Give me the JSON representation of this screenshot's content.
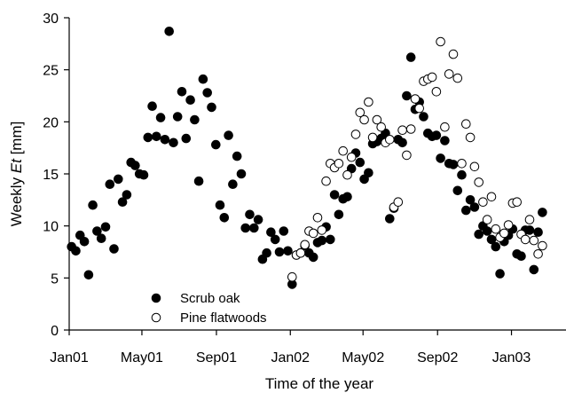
{
  "chart_data": {
    "type": "scatter",
    "xlabel": "Time of the year",
    "ylabel_prefix": "Weekly ",
    "ylabel_italic": "Et",
    "ylabel_suffix": " [mm]",
    "ylim": [
      0,
      30
    ],
    "yticks": [
      0,
      5,
      10,
      15,
      20,
      25,
      30
    ],
    "xlim": [
      "2001-01-01",
      "2003-04-01"
    ],
    "xticks": [
      {
        "date": "2001-01-01",
        "label": "Jan01"
      },
      {
        "date": "2001-05-01",
        "label": "May01"
      },
      {
        "date": "2001-09-01",
        "label": "Sep01"
      },
      {
        "date": "2002-01-01",
        "label": "Jan02"
      },
      {
        "date": "2002-05-01",
        "label": "May02"
      },
      {
        "date": "2002-09-01",
        "label": "Sep02"
      },
      {
        "date": "2003-01-01",
        "label": "Jan03"
      }
    ],
    "legend_position": "bottom-left",
    "series": [
      {
        "name": "Scrub oak",
        "marker": "filled-circle",
        "color": "#000000",
        "points": [
          [
            "2001-01-05",
            8.0
          ],
          [
            "2001-01-12",
            7.6
          ],
          [
            "2001-01-19",
            9.1
          ],
          [
            "2001-01-26",
            8.5
          ],
          [
            "2001-02-02",
            5.3
          ],
          [
            "2001-02-09",
            12.0
          ],
          [
            "2001-02-16",
            9.5
          ],
          [
            "2001-02-23",
            8.8
          ],
          [
            "2001-03-02",
            9.9
          ],
          [
            "2001-03-09",
            14.0
          ],
          [
            "2001-03-16",
            7.8
          ],
          [
            "2001-03-23",
            14.5
          ],
          [
            "2001-03-30",
            12.3
          ],
          [
            "2001-04-06",
            13.0
          ],
          [
            "2001-04-13",
            16.1
          ],
          [
            "2001-04-20",
            15.8
          ],
          [
            "2001-04-27",
            15.0
          ],
          [
            "2001-05-04",
            14.9
          ],
          [
            "2001-05-11",
            18.5
          ],
          [
            "2001-05-18",
            21.5
          ],
          [
            "2001-05-25",
            18.6
          ],
          [
            "2001-06-01",
            20.4
          ],
          [
            "2001-06-08",
            18.3
          ],
          [
            "2001-06-15",
            28.7
          ],
          [
            "2001-06-22",
            18.0
          ],
          [
            "2001-06-29",
            20.5
          ],
          [
            "2001-07-06",
            22.9
          ],
          [
            "2001-07-13",
            18.4
          ],
          [
            "2001-07-20",
            22.1
          ],
          [
            "2001-07-27",
            20.2
          ],
          [
            "2001-08-03",
            14.3
          ],
          [
            "2001-08-10",
            24.1
          ],
          [
            "2001-08-17",
            22.8
          ],
          [
            "2001-08-24",
            21.4
          ],
          [
            "2001-08-31",
            17.8
          ],
          [
            "2001-09-07",
            12.0
          ],
          [
            "2001-09-14",
            10.8
          ],
          [
            "2001-09-21",
            18.7
          ],
          [
            "2001-09-28",
            14.0
          ],
          [
            "2001-10-05",
            16.7
          ],
          [
            "2001-10-12",
            15.0
          ],
          [
            "2001-10-19",
            9.8
          ],
          [
            "2001-10-26",
            11.1
          ],
          [
            "2001-11-02",
            9.8
          ],
          [
            "2001-11-09",
            10.6
          ],
          [
            "2001-11-16",
            6.8
          ],
          [
            "2001-11-23",
            7.4
          ],
          [
            "2001-11-30",
            9.4
          ],
          [
            "2001-12-07",
            8.7
          ],
          [
            "2001-12-14",
            7.5
          ],
          [
            "2001-12-21",
            9.5
          ],
          [
            "2001-12-28",
            7.6
          ],
          [
            "2002-01-04",
            4.4
          ],
          [
            "2002-01-11",
            7.2
          ],
          [
            "2002-01-18",
            7.4
          ],
          [
            "2002-01-25",
            8.1
          ],
          [
            "2002-02-01",
            7.4
          ],
          [
            "2002-02-08",
            7.0
          ],
          [
            "2002-02-15",
            8.4
          ],
          [
            "2002-02-22",
            8.6
          ],
          [
            "2002-03-01",
            9.9
          ],
          [
            "2002-03-08",
            8.7
          ],
          [
            "2002-03-15",
            13.0
          ],
          [
            "2002-03-22",
            11.1
          ],
          [
            "2002-03-29",
            12.6
          ],
          [
            "2002-04-05",
            12.8
          ],
          [
            "2002-04-12",
            15.5
          ],
          [
            "2002-04-19",
            17.0
          ],
          [
            "2002-04-26",
            16.1
          ],
          [
            "2002-05-03",
            14.5
          ],
          [
            "2002-05-10",
            15.1
          ],
          [
            "2002-05-17",
            17.9
          ],
          [
            "2002-05-24",
            18.1
          ],
          [
            "2002-05-31",
            18.4
          ],
          [
            "2002-06-07",
            18.9
          ],
          [
            "2002-06-14",
            10.7
          ],
          [
            "2002-06-21",
            11.7
          ],
          [
            "2002-06-28",
            18.3
          ],
          [
            "2002-07-05",
            18.0
          ],
          [
            "2002-07-12",
            22.5
          ],
          [
            "2002-07-19",
            26.2
          ],
          [
            "2002-07-26",
            21.2
          ],
          [
            "2002-08-02",
            21.9
          ],
          [
            "2002-08-09",
            20.5
          ],
          [
            "2002-08-16",
            18.9
          ],
          [
            "2002-08-23",
            18.6
          ],
          [
            "2002-08-30",
            18.7
          ],
          [
            "2002-09-06",
            16.5
          ],
          [
            "2002-09-13",
            18.2
          ],
          [
            "2002-09-20",
            16.0
          ],
          [
            "2002-09-27",
            15.9
          ],
          [
            "2002-10-04",
            13.4
          ],
          [
            "2002-10-11",
            14.9
          ],
          [
            "2002-10-18",
            11.5
          ],
          [
            "2002-10-25",
            12.5
          ],
          [
            "2002-11-01",
            11.8
          ],
          [
            "2002-11-08",
            9.2
          ],
          [
            "2002-11-15",
            10.0
          ],
          [
            "2002-11-22",
            9.5
          ],
          [
            "2002-11-29",
            8.7
          ],
          [
            "2002-12-06",
            8.0
          ],
          [
            "2002-12-13",
            5.4
          ],
          [
            "2002-12-20",
            8.5
          ],
          [
            "2002-12-27",
            9.1
          ],
          [
            "2003-01-03",
            9.7
          ],
          [
            "2003-01-10",
            7.3
          ],
          [
            "2003-01-17",
            7.1
          ],
          [
            "2003-01-24",
            9.6
          ],
          [
            "2003-01-31",
            9.6
          ],
          [
            "2003-02-07",
            5.8
          ],
          [
            "2003-02-14",
            9.4
          ],
          [
            "2003-02-21",
            11.3
          ]
        ]
      },
      {
        "name": "Pine flatwoods",
        "marker": "open-circle",
        "color": "#000000",
        "points": [
          [
            "2002-01-04",
            5.1
          ],
          [
            "2002-01-11",
            7.2
          ],
          [
            "2002-01-18",
            7.4
          ],
          [
            "2002-01-25",
            8.2
          ],
          [
            "2002-02-01",
            9.5
          ],
          [
            "2002-02-08",
            9.3
          ],
          [
            "2002-02-15",
            10.8
          ],
          [
            "2002-02-22",
            9.6
          ],
          [
            "2002-03-01",
            14.3
          ],
          [
            "2002-03-08",
            16.0
          ],
          [
            "2002-03-15",
            15.6
          ],
          [
            "2002-03-22",
            16.0
          ],
          [
            "2002-03-29",
            17.2
          ],
          [
            "2002-04-05",
            14.9
          ],
          [
            "2002-04-12",
            16.6
          ],
          [
            "2002-04-19",
            18.8
          ],
          [
            "2002-04-26",
            20.9
          ],
          [
            "2002-05-03",
            20.2
          ],
          [
            "2002-05-10",
            21.9
          ],
          [
            "2002-05-17",
            18.5
          ],
          [
            "2002-05-24",
            20.2
          ],
          [
            "2002-05-31",
            19.5
          ],
          [
            "2002-06-07",
            18.0
          ],
          [
            "2002-06-14",
            18.3
          ],
          [
            "2002-06-21",
            11.8
          ],
          [
            "2002-06-28",
            12.3
          ],
          [
            "2002-07-05",
            19.2
          ],
          [
            "2002-07-12",
            16.8
          ],
          [
            "2002-07-19",
            19.3
          ],
          [
            "2002-07-26",
            22.2
          ],
          [
            "2002-08-02",
            21.3
          ],
          [
            "2002-08-09",
            23.9
          ],
          [
            "2002-08-16",
            24.1
          ],
          [
            "2002-08-23",
            24.3
          ],
          [
            "2002-08-30",
            22.9
          ],
          [
            "2002-09-06",
            27.7
          ],
          [
            "2002-09-13",
            19.5
          ],
          [
            "2002-09-20",
            24.6
          ],
          [
            "2002-09-27",
            26.5
          ],
          [
            "2002-10-04",
            24.2
          ],
          [
            "2002-10-11",
            16.0
          ],
          [
            "2002-10-18",
            19.8
          ],
          [
            "2002-10-25",
            18.5
          ],
          [
            "2002-11-01",
            15.7
          ],
          [
            "2002-11-08",
            14.2
          ],
          [
            "2002-11-15",
            12.3
          ],
          [
            "2002-11-22",
            10.6
          ],
          [
            "2002-11-29",
            12.8
          ],
          [
            "2002-12-06",
            9.7
          ],
          [
            "2002-12-13",
            8.9
          ],
          [
            "2002-12-20",
            9.3
          ],
          [
            "2002-12-27",
            10.1
          ],
          [
            "2003-01-03",
            12.2
          ],
          [
            "2003-01-10",
            12.3
          ],
          [
            "2003-01-17",
            9.2
          ],
          [
            "2003-01-24",
            8.7
          ],
          [
            "2003-01-31",
            10.6
          ],
          [
            "2003-02-07",
            8.6
          ],
          [
            "2003-02-14",
            7.3
          ],
          [
            "2003-02-21",
            8.1
          ]
        ]
      }
    ]
  }
}
